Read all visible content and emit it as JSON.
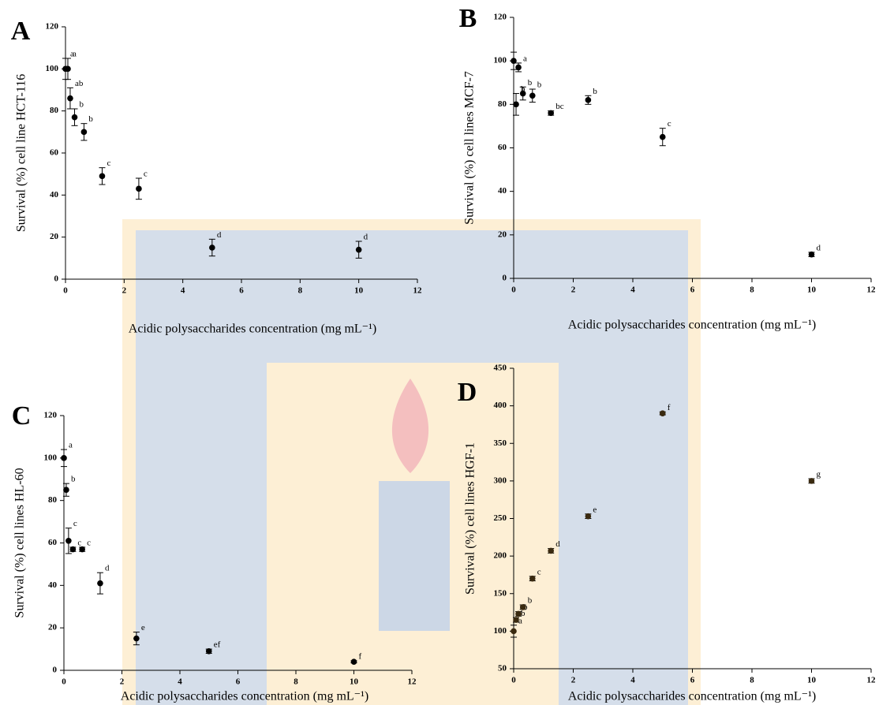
{
  "chart_data": [
    {
      "type": "scatter",
      "panel_label": "A",
      "y_label": "Survival (%) cell line HCT-116",
      "x_label": "Acidic polysaccharides concentration (mg mL⁻¹)",
      "color": "#000000",
      "x": [
        0,
        0.08,
        0.16,
        0.31,
        0.63,
        1.25,
        2.5,
        5,
        10
      ],
      "values": [
        100,
        100,
        86,
        77,
        70,
        49,
        43,
        15,
        14
      ],
      "errors": [
        5,
        5,
        5,
        4,
        4,
        4,
        5,
        4,
        4
      ],
      "letters": [
        "a",
        "a",
        "ab",
        "b",
        "b",
        "c",
        "c",
        "d",
        "d"
      ],
      "xlim": [
        0,
        12
      ],
      "xticks": [
        0,
        2,
        4,
        6,
        8,
        10,
        12
      ],
      "ylim": [
        0,
        120
      ],
      "yticks": [
        0,
        20,
        40,
        60,
        80,
        100,
        120
      ]
    },
    {
      "type": "scatter",
      "panel_label": "B",
      "y_label": "Survival (%) cell lines MCF-7",
      "x_label": "Acidic polysaccharides concentration (mg mL⁻¹)",
      "color": "#000000",
      "x": [
        0,
        0.08,
        0.16,
        0.31,
        0.63,
        1.25,
        2.5,
        5,
        10
      ],
      "values": [
        100,
        80,
        97,
        85,
        84,
        76,
        82,
        65,
        11
      ],
      "errors": [
        4,
        5,
        2,
        3,
        3,
        1,
        2,
        4,
        1
      ],
      "letters": [
        null,
        "b",
        "a",
        "b",
        "b",
        "bc",
        "b",
        "c",
        "d"
      ],
      "xlim": [
        0,
        12
      ],
      "xticks": [
        0,
        2,
        4,
        6,
        8,
        10,
        12
      ],
      "ylim": [
        0,
        120
      ],
      "yticks": [
        0,
        20,
        40,
        60,
        80,
        100,
        120
      ]
    },
    {
      "type": "scatter",
      "panel_label": "C",
      "y_label": "Survival (%) cell lines HL-60",
      "x_label": "Acidic polysaccharides concentration (mg mL⁻¹)",
      "color": "#000000",
      "x": [
        0,
        0.08,
        0.16,
        0.31,
        0.63,
        1.25,
        2.5,
        5,
        10
      ],
      "values": [
        100,
        85,
        61,
        57,
        57,
        41,
        15,
        9,
        4
      ],
      "errors": [
        4,
        3,
        6,
        1,
        1,
        5,
        3,
        1,
        0.5
      ],
      "letters": [
        "a",
        "b",
        "c",
        "c",
        "c",
        "d",
        "e",
        "ef",
        "f"
      ],
      "xlim": [
        0,
        12
      ],
      "xticks": [
        0,
        2,
        4,
        6,
        8,
        10,
        12
      ],
      "ylim": [
        0,
        120
      ],
      "yticks": [
        0,
        20,
        40,
        60,
        80,
        100,
        120
      ]
    },
    {
      "type": "scatter",
      "panel_label": "D",
      "y_label": "Survival (%) cell lines HGF-1",
      "x_label": "Acidic polysaccharides concentration (mg mL⁻¹)",
      "color": "#3a2a10",
      "x": [
        0,
        0.08,
        0.16,
        0.31,
        0.63,
        1.25,
        2.5,
        5,
        10
      ],
      "values": [
        100,
        115,
        123,
        132,
        170,
        207,
        253,
        390,
        300
      ],
      "errors": [
        8,
        3,
        3,
        3,
        3,
        3,
        3,
        2,
        3
      ],
      "letters": [
        "a",
        "b",
        "b",
        "b",
        "c",
        "d",
        "e",
        "f",
        "g"
      ],
      "xlim": [
        0,
        12
      ],
      "xticks": [
        0,
        2,
        4,
        6,
        8,
        10,
        12
      ],
      "ylim": [
        50,
        450
      ],
      "yticks": [
        50,
        100,
        150,
        200,
        250,
        300,
        350,
        400,
        450
      ]
    }
  ]
}
